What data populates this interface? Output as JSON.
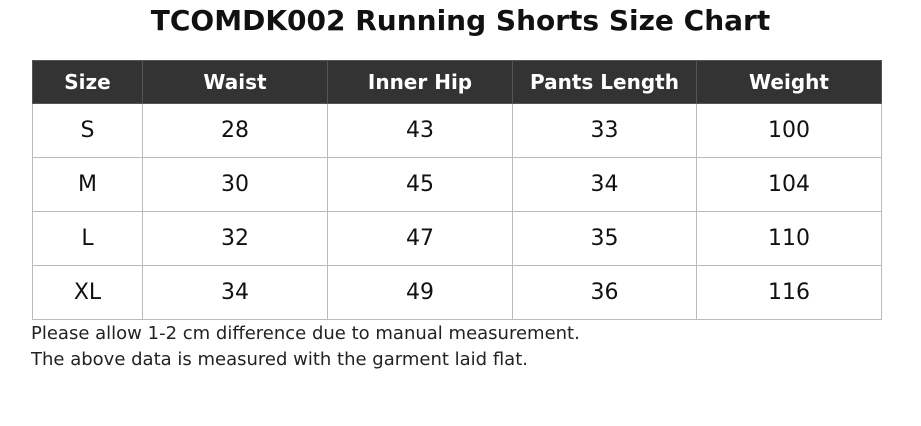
{
  "title": "TCOMDK002 Running Shorts Size Chart",
  "table": {
    "header": [
      "Size",
      "Waist",
      "Inner Hip",
      "Pants Length",
      "Weight"
    ],
    "rows": [
      [
        "S",
        "28",
        "43",
        "33",
        "100"
      ],
      [
        "M",
        "30",
        "45",
        "34",
        "104"
      ],
      [
        "L",
        "32",
        "47",
        "35",
        "110"
      ],
      [
        "XL",
        "34",
        "49",
        "36",
        "116"
      ]
    ]
  },
  "notes": [
    "Please allow 1-2 cm difference due to manual measurement.",
    "The above data is measured with the garment laid flat."
  ]
}
